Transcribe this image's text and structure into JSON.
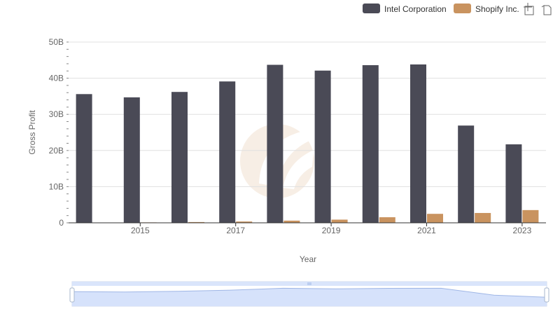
{
  "chart_data": {
    "type": "bar",
    "title": "",
    "xlabel": "Year",
    "ylabel": "Gross Profit",
    "ylim": [
      0,
      50000000000
    ],
    "y_ticks": [
      {
        "value": 0,
        "label": "0"
      },
      {
        "value": 10000000000,
        "label": "10B"
      },
      {
        "value": 20000000000,
        "label": "20B"
      },
      {
        "value": 30000000000,
        "label": "30B"
      },
      {
        "value": 40000000000,
        "label": "40B"
      },
      {
        "value": 50000000000,
        "label": "50B"
      }
    ],
    "categories": [
      "2014",
      "2015",
      "2016",
      "2017",
      "2018",
      "2019",
      "2020",
      "2021",
      "2022",
      "2023"
    ],
    "x_tick_labels": [
      "2015",
      "2017",
      "2019",
      "2021",
      "2023"
    ],
    "series": [
      {
        "name": "Intel Corporation",
        "color": "#4a4a56",
        "values": [
          35600000000,
          34700000000,
          36200000000,
          39100000000,
          43700000000,
          42100000000,
          43600000000,
          43800000000,
          26900000000,
          21700000000
        ]
      },
      {
        "name": "Shopify Inc.",
        "color": "#c9935f",
        "values": [
          50000000,
          120000000,
          210000000,
          360000000,
          600000000,
          880000000,
          1540000000,
          2480000000,
          2720000000,
          3520000000
        ]
      }
    ],
    "legend": {
      "position": "top-right"
    },
    "grid": true
  },
  "colors": {
    "grid": "#e0e0e0",
    "axis": "#333333",
    "slider_fill": "#d6e2fb",
    "slider_border": "#c5d2ee",
    "slider_line": "#9fb6e6",
    "watermark": "#f6ece3"
  },
  "toolbar": {
    "zoom_icon": "zoom-icon",
    "restore_icon": "restore-icon"
  }
}
